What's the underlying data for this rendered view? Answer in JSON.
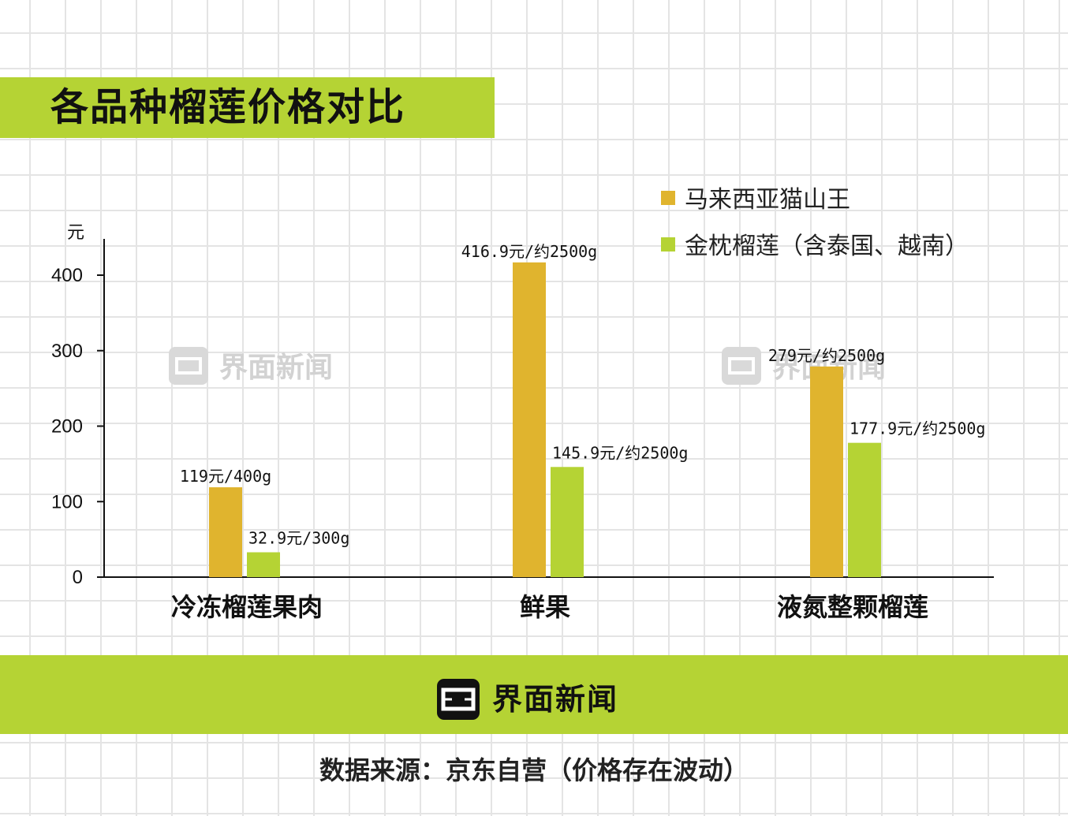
{
  "header": {
    "title": "各品种榴莲价格对比"
  },
  "watermark": {
    "text": "界面新闻"
  },
  "footer": {
    "brand": "界面新闻",
    "source": "数据来源：京东自营（价格存在波动）"
  },
  "colors": {
    "accent": "#b5d334",
    "series_1": "#e0b42e",
    "series_2": "#b5d334"
  },
  "chart_data": {
    "type": "bar",
    "title": "各品种榴莲价格对比",
    "ylabel": "元",
    "xlabel": "",
    "ylim": [
      0,
      450
    ],
    "yticks": [
      0,
      100,
      200,
      300,
      400
    ],
    "categories": [
      "冷冻榴莲果肉",
      "鲜果",
      "液氮整颗榴莲"
    ],
    "series": [
      {
        "name": "马来西亚猫山王",
        "color": "#e0b42e",
        "values": [
          119,
          416.9,
          279
        ],
        "labels": [
          "119元/400g",
          "416.9元/约2500g",
          "279元/约2500g"
        ]
      },
      {
        "name": "金枕榴莲（含泰国、越南）",
        "color": "#b5d334",
        "values": [
          32.9,
          145.9,
          177.9
        ],
        "labels": [
          "32.9元/300g",
          "145.9元/约2500g",
          "177.9元/约2500g"
        ]
      }
    ],
    "legend": "top-right",
    "grid": false
  }
}
